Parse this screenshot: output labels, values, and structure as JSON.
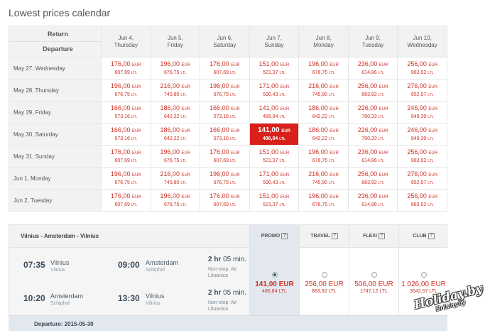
{
  "title": "Lowest prices calendar",
  "calendar": {
    "corner_return": "Return",
    "corner_departure": "Departure",
    "columns": [
      {
        "day": "Jun 4,",
        "weekday": "Thursday"
      },
      {
        "day": "Jun 5,",
        "weekday": "Friday"
      },
      {
        "day": "Jun 6,",
        "weekday": "Saturday"
      },
      {
        "day": "Jun 7,",
        "weekday": "Sunday"
      },
      {
        "day": "Jun 8,",
        "weekday": "Monday"
      },
      {
        "day": "Jun 9,",
        "weekday": "Tuesday"
      },
      {
        "day": "Jun 10,",
        "weekday": "Wednesday"
      }
    ],
    "currency_eur": "EUR",
    "currency_ltl": "LTL",
    "selected": {
      "row": 3,
      "col": 3
    },
    "rows": [
      {
        "label": "May 27, Wednesday",
        "cells": [
          {
            "eur": "176,00",
            "ltl": "607,69"
          },
          {
            "eur": "196,00",
            "ltl": "676,75"
          },
          {
            "eur": "176,00",
            "ltl": "607,69"
          },
          {
            "eur": "151,00",
            "ltl": "521,37"
          },
          {
            "eur": "196,00",
            "ltl": "676,75"
          },
          {
            "eur": "236,00",
            "ltl": "814,86"
          },
          {
            "eur": "256,00",
            "ltl": "883,92"
          }
        ]
      },
      {
        "label": "May 28, Thursday",
        "cells": [
          {
            "eur": "196,00",
            "ltl": "676,75"
          },
          {
            "eur": "216,00",
            "ltl": "745,80"
          },
          {
            "eur": "196,00",
            "ltl": "676,75"
          },
          {
            "eur": "171,00",
            "ltl": "590,43"
          },
          {
            "eur": "216,00",
            "ltl": "745,80"
          },
          {
            "eur": "256,00",
            "ltl": "883,92"
          },
          {
            "eur": "276,00",
            "ltl": "952,97"
          }
        ]
      },
      {
        "label": "May 29, Friday",
        "cells": [
          {
            "eur": "166,00",
            "ltl": "573,16"
          },
          {
            "eur": "186,00",
            "ltl": "642,22"
          },
          {
            "eur": "166,00",
            "ltl": "573,16"
          },
          {
            "eur": "141,00",
            "ltl": "486,84"
          },
          {
            "eur": "186,00",
            "ltl": "642,22"
          },
          {
            "eur": "226,00",
            "ltl": "780,33"
          },
          {
            "eur": "246,00",
            "ltl": "849,39"
          }
        ]
      },
      {
        "label": "May 30, Saturday",
        "cells": [
          {
            "eur": "166,00",
            "ltl": "573,16"
          },
          {
            "eur": "186,00",
            "ltl": "642,22"
          },
          {
            "eur": "166,00",
            "ltl": "573,16"
          },
          {
            "eur": "141,00",
            "ltl": "486,84"
          },
          {
            "eur": "186,00",
            "ltl": "642,22"
          },
          {
            "eur": "226,00",
            "ltl": "780,33"
          },
          {
            "eur": "246,00",
            "ltl": "849,39"
          }
        ]
      },
      {
        "label": "May 31, Sunday",
        "cells": [
          {
            "eur": "176,00",
            "ltl": "607,69"
          },
          {
            "eur": "196,00",
            "ltl": "676,75"
          },
          {
            "eur": "176,00",
            "ltl": "607,69"
          },
          {
            "eur": "151,00",
            "ltl": "521,37"
          },
          {
            "eur": "196,00",
            "ltl": "676,75"
          },
          {
            "eur": "236,00",
            "ltl": "814,86"
          },
          {
            "eur": "256,00",
            "ltl": "883,92"
          }
        ]
      },
      {
        "label": "Jun 1, Monday",
        "cells": [
          {
            "eur": "196,00",
            "ltl": "676,75"
          },
          {
            "eur": "216,00",
            "ltl": "745,80"
          },
          {
            "eur": "196,00",
            "ltl": "676,75"
          },
          {
            "eur": "171,00",
            "ltl": "590,43"
          },
          {
            "eur": "216,00",
            "ltl": "745,80"
          },
          {
            "eur": "256,00",
            "ltl": "883,92"
          },
          {
            "eur": "276,00",
            "ltl": "952,97"
          }
        ]
      },
      {
        "label": "Jun 2, Tuesday",
        "cells": [
          {
            "eur": "176,00",
            "ltl": "607,69"
          },
          {
            "eur": "196,00",
            "ltl": "676,75"
          },
          {
            "eur": "176,00",
            "ltl": "607,69"
          },
          {
            "eur": "151,00",
            "ltl": "521,37"
          },
          {
            "eur": "196,00",
            "ltl": "676,75"
          },
          {
            "eur": "236,00",
            "ltl": "814,86"
          },
          {
            "eur": "256,00",
            "ltl": "883,92"
          }
        ]
      }
    ]
  },
  "flight": {
    "route_title": "Vilnius - Amsterdam - Vilnius",
    "fare_types": [
      {
        "name": "PROMO",
        "eur": "141,00 EUR",
        "ltl": "486,84 LTL",
        "checked": true
      },
      {
        "name": "TRAVEL",
        "eur": "256,00 EUR",
        "ltl": "883,92 LTL",
        "checked": false
      },
      {
        "name": "FLEXI",
        "eur": "506,00 EUR",
        "ltl": "1747,12 LTL",
        "checked": false
      },
      {
        "name": "CLUB",
        "eur": "1 026,00 EUR",
        "ltl": "3542,57 LTL",
        "checked": false
      }
    ],
    "outbound": {
      "dep_time": "07:35",
      "dep_city": "Vilnius",
      "dep_airport": "Vilnius",
      "arr_time": "09:00",
      "arr_city": "Amsterdam",
      "arr_airport": "Schiphol",
      "duration_hr": "2 hr",
      "duration_min": "05 min.",
      "stop_info": "Non-stop, Air Lituanica"
    },
    "inbound": {
      "dep_time": "10:20",
      "dep_city": "Amsterdam",
      "dep_airport": "Schiphol",
      "arr_time": "13:30",
      "arr_city": "Vilnius",
      "arr_airport": "Vilnius",
      "duration_hr": "2 hr",
      "duration_min": "05 min.",
      "stop_info": "Non-stop, Air Lituanica"
    },
    "departure_bar": "Departure: 2015-05-30"
  },
  "watermark": {
    "main": "Holiday.by",
    "sub": "Holiday.by"
  },
  "colors": {
    "price_red": "#d03227",
    "selected_bg": "#d9201a",
    "header_bg": "#f2f2f2",
    "promo_bg": "#e3e8ee"
  }
}
